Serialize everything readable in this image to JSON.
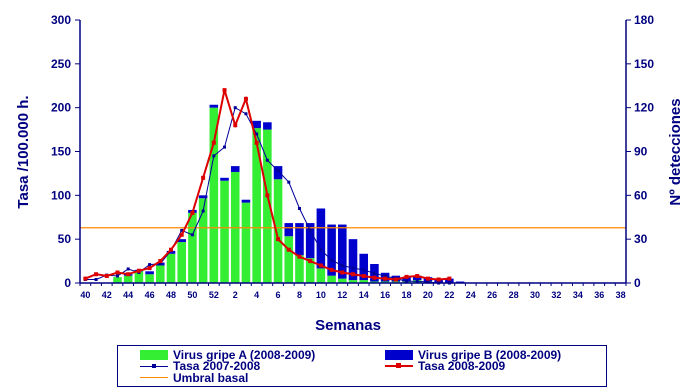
{
  "chart_data": {
    "type": "bar+line",
    "xlabel": "Semanas",
    "ylabel_left": "Tasa /100.000 h.",
    "ylabel_right": "Nº detecciones",
    "ylim_left": [
      0,
      300
    ],
    "ylim_right": [
      0,
      180
    ],
    "yticks_left": [
      "0",
      "50",
      "100",
      "150",
      "200",
      "250",
      "300"
    ],
    "yticks_right": [
      "0",
      "30",
      "60",
      "90",
      "120",
      "150",
      "180"
    ],
    "weeks": [
      "40",
      "41",
      "42",
      "43",
      "44",
      "45",
      "46",
      "47",
      "48",
      "49",
      "50",
      "51",
      "52",
      "1",
      "2",
      "3",
      "4",
      "5",
      "6",
      "7",
      "8",
      "9",
      "10",
      "11",
      "12",
      "13",
      "14",
      "15",
      "16",
      "17",
      "18",
      "19",
      "20",
      "21",
      "22",
      "23",
      "24",
      "25",
      "26",
      "27",
      "28",
      "29",
      "30",
      "31",
      "32",
      "33",
      "34",
      "35",
      "36",
      "37",
      "38"
    ],
    "x_tick_labels": [
      "40",
      "42",
      "44",
      "46",
      "48",
      "50",
      "52",
      "2",
      "4",
      "6",
      "8",
      "10",
      "12",
      "14",
      "16",
      "18",
      "20",
      "22",
      "24",
      "26",
      "28",
      "30",
      "32",
      "34",
      "36",
      "38"
    ],
    "series": [
      {
        "name": "Virus gripe A (2008-2009)",
        "kind": "bar",
        "axis": "right",
        "color": "#33ee33",
        "values": [
          0,
          0,
          0,
          4,
          5,
          8,
          6,
          12,
          20,
          28,
          48,
          58,
          120,
          70,
          76,
          55,
          106,
          105,
          71,
          32,
          19,
          17,
          10,
          5,
          3,
          2,
          2,
          1,
          1,
          1,
          1,
          2,
          1,
          0,
          0,
          0,
          0,
          0,
          0,
          0,
          0,
          0,
          0,
          0,
          0,
          0,
          0,
          0,
          0,
          0,
          0
        ]
      },
      {
        "name": "Virus gripe B (2008-2009)",
        "kind": "bar",
        "axis": "right",
        "color": "#0000cc",
        "values": [
          0,
          0,
          0,
          0,
          1,
          1,
          2,
          2,
          2,
          2,
          2,
          2,
          2,
          2,
          4,
          2,
          5,
          5,
          9,
          9,
          22,
          24,
          41,
          35,
          37,
          28,
          18,
          12,
          6,
          4,
          3,
          3,
          3,
          2,
          3,
          1,
          0,
          0,
          0,
          0,
          0,
          0,
          0,
          0,
          0,
          0,
          0,
          0,
          0,
          0,
          0
        ]
      },
      {
        "name": "Tasa 2007-2008",
        "kind": "line",
        "axis": "left",
        "color": "#000099",
        "values": [
          4,
          4,
          9,
          8,
          16,
          12,
          21,
          22,
          37,
          60,
          55,
          82,
          145,
          155,
          200,
          193,
          170,
          140,
          128,
          115,
          85,
          60,
          38,
          26,
          20,
          17,
          15,
          11,
          8,
          5,
          2,
          2,
          1,
          0,
          0,
          null,
          null,
          null,
          null,
          null,
          null,
          null,
          null,
          null,
          null,
          null,
          null,
          null,
          null,
          null,
          null
        ]
      },
      {
        "name": "Tasa 2008-2009",
        "kind": "line",
        "axis": "left",
        "color": "#dd0000",
        "values": [
          5,
          10,
          8,
          12,
          10,
          14,
          17,
          25,
          38,
          55,
          80,
          120,
          160,
          220,
          180,
          210,
          160,
          100,
          50,
          38,
          30,
          25,
          20,
          15,
          12,
          10,
          8,
          6,
          5,
          4,
          7,
          8,
          5,
          4,
          5,
          null,
          null,
          null,
          null,
          null,
          null,
          null,
          null,
          null,
          null,
          null,
          null,
          null,
          null,
          null,
          null
        ]
      },
      {
        "name": "Umbral basal",
        "kind": "hline",
        "axis": "left",
        "color": "#ff8800",
        "value": 63
      }
    ],
    "legend_placement": "bottom",
    "grid": false
  }
}
